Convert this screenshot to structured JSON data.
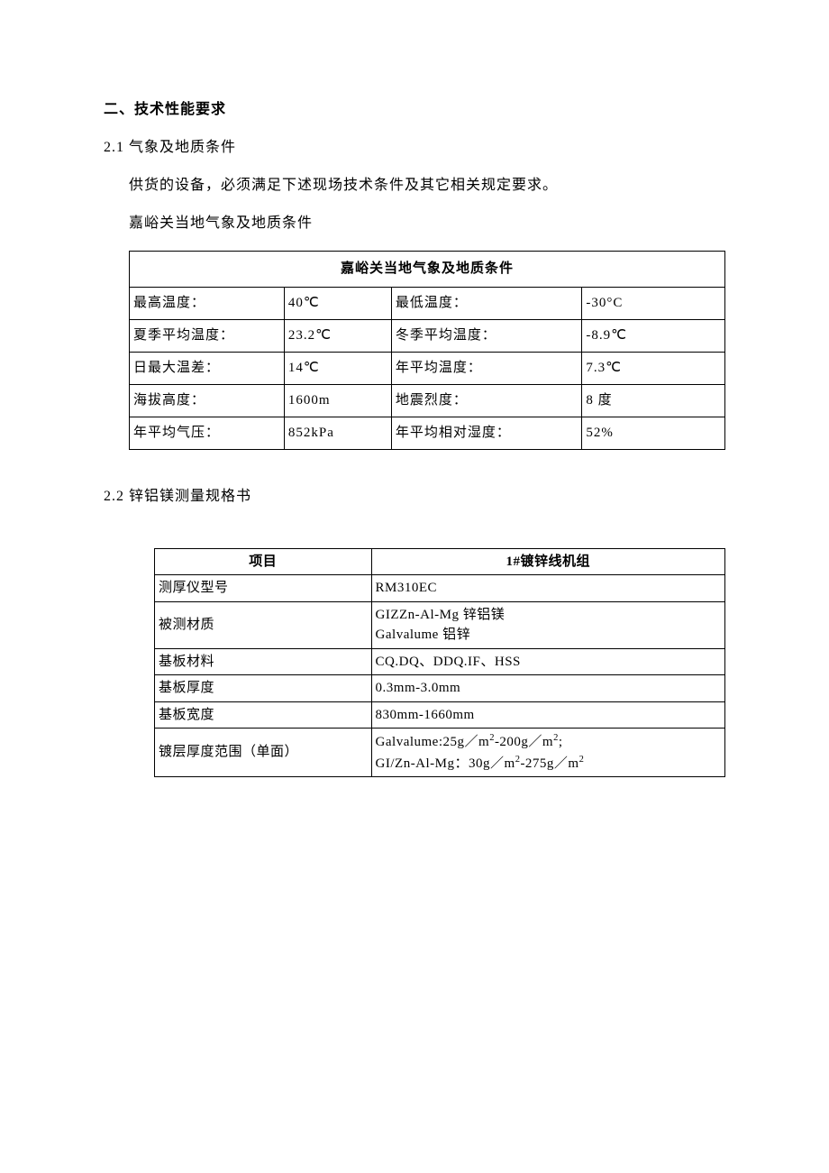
{
  "colors": {
    "text": "#000000",
    "background": "#ffffff",
    "border": "#000000"
  },
  "typography": {
    "base_family": "SimSun",
    "base_size_pt": 12,
    "heading_weight": "bold"
  },
  "section": {
    "heading": "二、技术性能要求",
    "s2_1": {
      "label": "2.1 气象及地质条件",
      "para1": "供货的设备，必须满足下述现场技术条件及其它相关规定要求。",
      "para2": "嘉峪关当地气象及地质条件",
      "table_title": "嘉峪关当地气象及地质条件",
      "rows": [
        {
          "l1": "最高温度：",
          "v1": "40℃",
          "l2": "最低温度：",
          "v2": "-30°C"
        },
        {
          "l1": "夏季平均温度：",
          "v1": "23.2℃",
          "l2": "冬季平均温度：",
          "v2": "-8.9℃"
        },
        {
          "l1": "日最大温差：",
          "v1": "14℃",
          "l2": "年平均温度：",
          "v2": "7.3℃"
        },
        {
          "l1": "海拔高度：",
          "v1": "1600m",
          "l2": "地震烈度：",
          "v2": "8 度"
        },
        {
          "l1": "年平均气压：",
          "v1": "852kPa",
          "l2": "年平均相对湿度：",
          "v2": "52%"
        }
      ]
    },
    "s2_2": {
      "label": "2.2  锌铝镁测量规格书",
      "header_col1": "项目",
      "header_col2": "1#镀锌线机组",
      "rows": [
        {
          "k": "测厚仪型号",
          "v": "RM310EC"
        },
        {
          "k": "被测材质",
          "v": "GIZZn-Al-Mg 锌铝镁\nGalvalume 铝锌"
        },
        {
          "k": "基板材料",
          "v": "CQ.DQ、DDQ.IF、HSS"
        },
        {
          "k": "基板厚度",
          "v": "0.3mm-3.0mm"
        },
        {
          "k": "基板宽度",
          "v": "830mm-1660mm"
        },
        {
          "k": "镀层厚度范围（单面）",
          "v": "Galvalume:25g／m²-200g／m²;\nGI/Zn-Al-Mg：30g／m²-275g／m²"
        }
      ]
    }
  }
}
